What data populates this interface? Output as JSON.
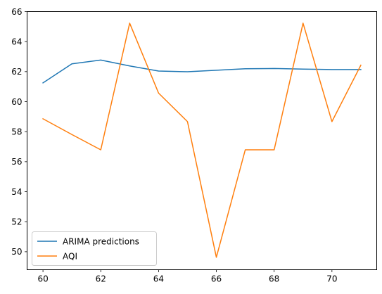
{
  "chart_data": {
    "type": "line",
    "title": "",
    "xlabel": "",
    "ylabel": "",
    "xlim": [
      59.45,
      71.55
    ],
    "ylim": [
      48.8,
      66
    ],
    "x_ticks": [
      60,
      62,
      64,
      66,
      68,
      70
    ],
    "y_ticks": [
      50,
      52,
      54,
      56,
      58,
      60,
      62,
      64,
      66
    ],
    "grid": false,
    "legend_position": "lower-left",
    "x": [
      60,
      61,
      62,
      63,
      64,
      65,
      66,
      67,
      68,
      69,
      70,
      71
    ],
    "series": [
      {
        "name": "ARIMA predictions",
        "color": "#1f77b4",
        "values": [
          61.25,
          62.52,
          62.77,
          62.38,
          62.04,
          61.99,
          62.09,
          62.19,
          62.21,
          62.17,
          62.14,
          62.14
        ]
      },
      {
        "name": "AQI",
        "color": "#ff7f0e",
        "values": [
          58.86,
          57.81,
          56.79,
          65.23,
          60.57,
          58.67,
          49.63,
          56.79,
          56.79,
          65.23,
          58.67,
          62.43
        ]
      }
    ]
  }
}
